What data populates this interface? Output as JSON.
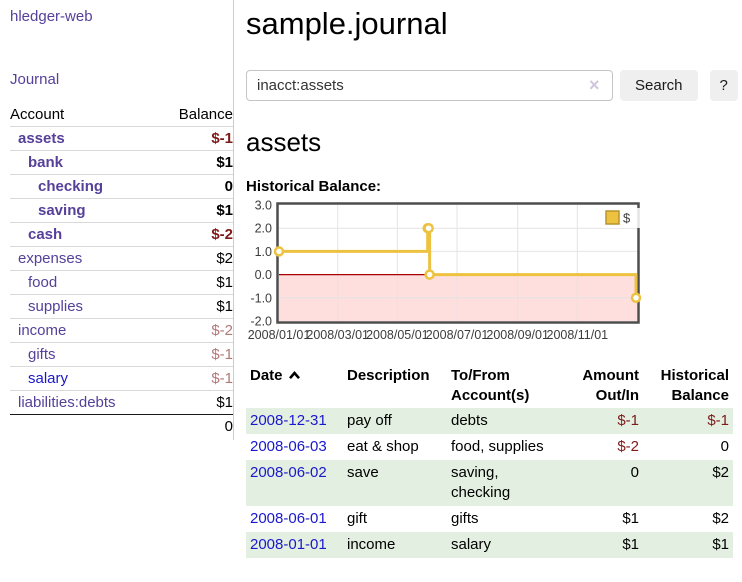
{
  "app": {
    "brand": "hledger-web",
    "nav_journal": "Journal"
  },
  "sidebar": {
    "headers": {
      "account": "Account",
      "balance": "Balance"
    },
    "accounts": [
      {
        "name": "assets",
        "balance": "$-1",
        "level": 0,
        "bold": true,
        "tone": "neg",
        "blue": false
      },
      {
        "name": "bank",
        "balance": "$1",
        "level": 1,
        "bold": true,
        "tone": "normal",
        "blue": false
      },
      {
        "name": "checking",
        "balance": "0",
        "level": 2,
        "bold": true,
        "tone": "normal",
        "blue": false
      },
      {
        "name": "saving",
        "balance": "$1",
        "level": 2,
        "bold": true,
        "tone": "normal",
        "blue": false
      },
      {
        "name": "cash",
        "balance": "$-2",
        "level": 1,
        "bold": true,
        "tone": "neg",
        "blue": false
      },
      {
        "name": "expenses",
        "balance": "$2",
        "level": 0,
        "bold": false,
        "tone": "normal",
        "blue": false
      },
      {
        "name": "food",
        "balance": "$1",
        "level": 1,
        "bold": false,
        "tone": "normal",
        "blue": false
      },
      {
        "name": "supplies",
        "balance": "$1",
        "level": 1,
        "bold": false,
        "tone": "normal",
        "blue": false
      },
      {
        "name": "income",
        "balance": "$-2",
        "level": 0,
        "bold": false,
        "tone": "neg-light",
        "blue": false
      },
      {
        "name": "gifts",
        "balance": "$-1",
        "level": 1,
        "bold": false,
        "tone": "neg-light",
        "blue": false
      },
      {
        "name": "salary",
        "balance": "$-1",
        "level": 1,
        "bold": false,
        "tone": "neg-light",
        "blue": true
      },
      {
        "name": "liabilities:debts",
        "balance": "$1",
        "level": 0,
        "bold": false,
        "tone": "normal",
        "blue": false
      }
    ],
    "total": "0"
  },
  "header": {
    "title": "sample.journal"
  },
  "search": {
    "value": "inacct:assets",
    "clear_icon": "×",
    "search_label": "Search",
    "help_label": "?"
  },
  "main": {
    "account_heading": "assets",
    "chart_label": "Historical Balance:"
  },
  "chart_data": {
    "type": "line",
    "title": "Historical Balance",
    "step": true,
    "ylim": [
      -2,
      3
    ],
    "x_range": [
      "2008-01-01",
      "2009-01-01"
    ],
    "y_ticks": [
      {
        "v": 3,
        "label": "3.0"
      },
      {
        "v": 2,
        "label": "2.0"
      },
      {
        "v": 1,
        "label": "1.0"
      },
      {
        "v": 0,
        "label": "0.0"
      },
      {
        "v": -1,
        "label": "-1.0"
      },
      {
        "v": -2,
        "label": "-2.0"
      }
    ],
    "x_ticks": [
      {
        "date": "2008-01-01",
        "label": "2008/01/01"
      },
      {
        "date": "2008-03-01",
        "label": "2008/03/01"
      },
      {
        "date": "2008-05-01",
        "label": "2008/05/01"
      },
      {
        "date": "2008-07-01",
        "label": "2008/07/01"
      },
      {
        "date": "2008-09-01",
        "label": "2008/09/01"
      },
      {
        "date": "2008-11-01",
        "label": "2008/11/01"
      }
    ],
    "series": [
      {
        "name": "$",
        "color": "#edc240",
        "points": [
          [
            "2008-01-01",
            1
          ],
          [
            "2008-06-01",
            2
          ],
          [
            "2008-06-02",
            2
          ],
          [
            "2008-06-03",
            0
          ],
          [
            "2008-12-31",
            -1
          ]
        ]
      }
    ],
    "negative_region_color": "#ffdede",
    "zero_line_color": "#a80000",
    "grid_color": "#e4e4e4",
    "border_color": "#4d4d4d",
    "legend": {
      "label": "$",
      "position": "top-right"
    }
  },
  "register": {
    "headers": {
      "date": "Date",
      "description": "Description",
      "to_from": "To/From Account(s)",
      "amount": "Amount Out/In",
      "balance": "Historical Balance"
    },
    "rows": [
      {
        "date": "2008-12-31",
        "description": "pay off",
        "accounts": "debts",
        "amount": "$-1",
        "balance": "$-1"
      },
      {
        "date": "2008-06-03",
        "description": "eat & shop",
        "accounts": "food, supplies",
        "amount": "$-2",
        "balance": "0"
      },
      {
        "date": "2008-06-02",
        "description": "save",
        "accounts": "saving, checking",
        "amount": "0",
        "balance": "$2"
      },
      {
        "date": "2008-06-01",
        "description": "gift",
        "accounts": "gifts",
        "amount": "$1",
        "balance": "$2"
      },
      {
        "date": "2008-01-01",
        "description": "income",
        "accounts": "salary",
        "amount": "$1",
        "balance": "$1"
      }
    ]
  }
}
